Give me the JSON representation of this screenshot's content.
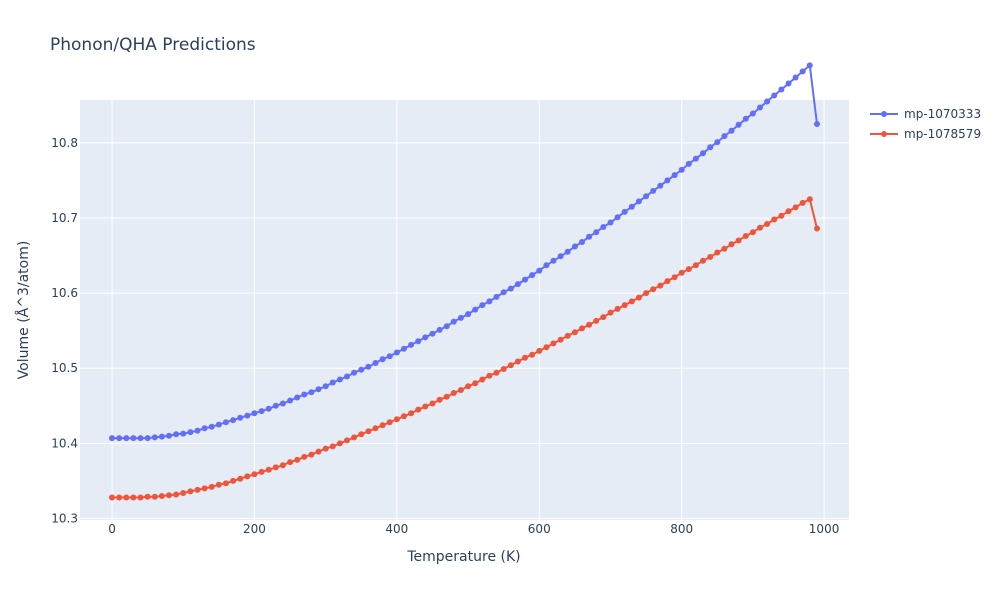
{
  "chart_data": {
    "type": "line",
    "title": "Phonon/QHA Predictions",
    "xlabel": "Temperature (K)",
    "ylabel": "Volume (Å^3/atom)",
    "xlim": [
      -45,
      1035
    ],
    "ylim": [
      10.298,
      10.857
    ],
    "xticks": [
      0,
      200,
      400,
      600,
      800,
      1000
    ],
    "xtick_labels": [
      "0",
      "200",
      "400",
      "600",
      "800",
      "1000"
    ],
    "yticks": [
      10.3,
      10.4,
      10.5,
      10.6,
      10.7,
      10.8
    ],
    "ytick_labels": [
      "10.3",
      "10.4",
      "10.5",
      "10.6",
      "10.7",
      "10.8"
    ],
    "grid": true,
    "legend_position": "top-right",
    "x": [
      0,
      10,
      20,
      30,
      40,
      50,
      60,
      70,
      80,
      90,
      100,
      110,
      120,
      130,
      140,
      150,
      160,
      170,
      180,
      190,
      200,
      210,
      220,
      230,
      240,
      250,
      260,
      270,
      280,
      290,
      300,
      310,
      320,
      330,
      340,
      350,
      360,
      370,
      380,
      390,
      400,
      410,
      420,
      430,
      440,
      450,
      460,
      470,
      480,
      490,
      500,
      510,
      520,
      530,
      540,
      550,
      560,
      570,
      580,
      590,
      600,
      610,
      620,
      630,
      640,
      650,
      660,
      670,
      680,
      690,
      700,
      710,
      720,
      730,
      740,
      750,
      760,
      770,
      780,
      790,
      800,
      810,
      820,
      830,
      840,
      850,
      860,
      870,
      880,
      890,
      900,
      910,
      920,
      930,
      940,
      950,
      960,
      970,
      980,
      990
    ],
    "series": [
      {
        "name": "mp-1070333",
        "color": "#636efa",
        "values": [
          10.407,
          10.407,
          10.407,
          10.407,
          10.407,
          10.407,
          10.408,
          10.409,
          10.41,
          10.412,
          10.413,
          10.415,
          10.417,
          10.42,
          10.422,
          10.425,
          10.428,
          10.431,
          10.434,
          10.437,
          10.44,
          10.443,
          10.446,
          10.45,
          10.453,
          10.457,
          10.461,
          10.465,
          10.468,
          10.472,
          10.476,
          10.481,
          10.485,
          10.489,
          10.494,
          10.498,
          10.502,
          10.507,
          10.512,
          10.516,
          10.521,
          10.526,
          10.531,
          10.536,
          10.541,
          10.546,
          10.551,
          10.556,
          10.562,
          10.567,
          10.572,
          10.578,
          10.584,
          10.589,
          10.595,
          10.601,
          10.606,
          10.612,
          10.618,
          10.624,
          10.63,
          10.637,
          10.643,
          10.649,
          10.655,
          10.662,
          10.668,
          10.675,
          10.681,
          10.688,
          10.694,
          10.701,
          10.708,
          10.715,
          10.722,
          10.729,
          10.736,
          10.743,
          10.75,
          10.757,
          10.764,
          10.772,
          10.779,
          10.786,
          10.794,
          10.801,
          10.809,
          10.816,
          10.824,
          10.832,
          10.839,
          10.847,
          10.855,
          10.863,
          10.871,
          10.879,
          10.887,
          10.895,
          10.903,
          10.825
        ]
      },
      {
        "name": "mp-1078579",
        "color": "#ef553b",
        "values": [
          10.328,
          10.328,
          10.328,
          10.328,
          10.328,
          10.329,
          10.329,
          10.33,
          10.331,
          10.332,
          10.334,
          10.336,
          10.338,
          10.34,
          10.342,
          10.345,
          10.347,
          10.35,
          10.353,
          10.356,
          10.359,
          10.362,
          10.365,
          10.368,
          10.371,
          10.375,
          10.378,
          10.382,
          10.385,
          10.389,
          10.393,
          10.396,
          10.4,
          10.404,
          10.408,
          10.412,
          10.416,
          10.42,
          10.424,
          10.428,
          10.432,
          10.436,
          10.44,
          10.445,
          10.449,
          10.453,
          10.458,
          10.462,
          10.467,
          10.471,
          10.476,
          10.48,
          10.485,
          10.49,
          10.494,
          10.499,
          10.504,
          10.509,
          10.514,
          10.518,
          10.523,
          10.528,
          10.533,
          10.538,
          10.543,
          10.548,
          10.553,
          10.558,
          10.563,
          10.568,
          10.574,
          10.579,
          10.584,
          10.589,
          10.594,
          10.6,
          10.605,
          10.61,
          10.616,
          10.621,
          10.627,
          10.632,
          10.637,
          10.643,
          10.648,
          10.654,
          10.659,
          10.665,
          10.67,
          10.676,
          10.681,
          10.687,
          10.692,
          10.698,
          10.703,
          10.709,
          10.714,
          10.72,
          10.725,
          10.686
        ]
      }
    ]
  }
}
